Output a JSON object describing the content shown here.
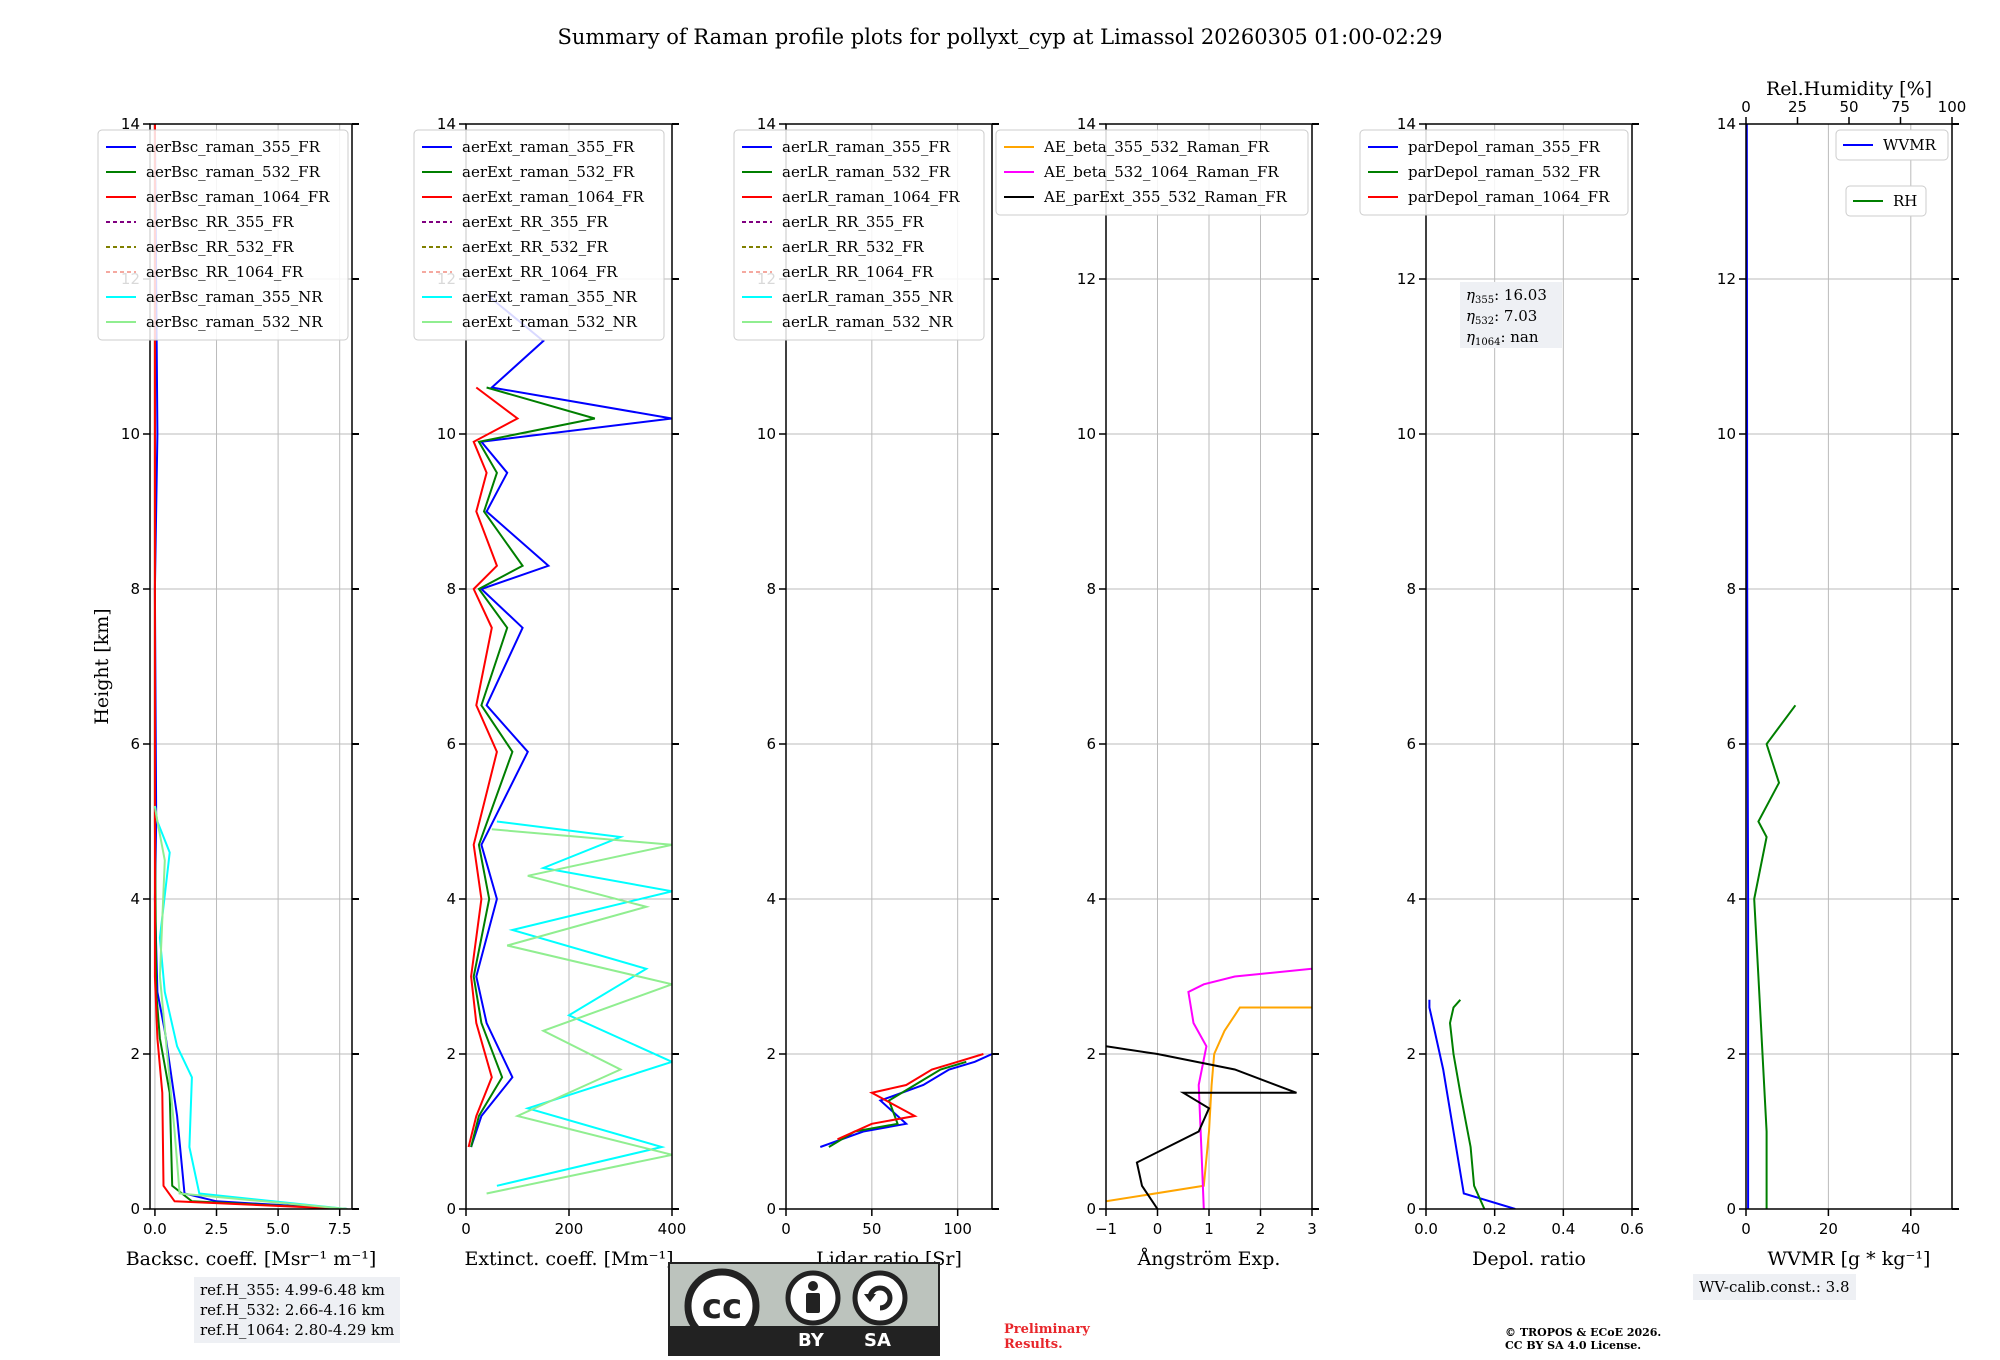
{
  "title": "Summary of Raman profile plots for pollyxt_cyp at Limassol 20260305 01:00-02:29",
  "colors": {
    "blue": "#0000ff",
    "green": "#007f00",
    "red": "#ff0000",
    "purple": "#800080",
    "olive": "#808000",
    "salmon": "#f5a9a0",
    "cyan": "#00ffff",
    "lightgreen": "#90ee90",
    "orange": "#ffa500",
    "magenta": "#ff00ff",
    "black": "#000000"
  },
  "chart_data": [
    {
      "type": "line",
      "id": "backscatter",
      "xlabel": "Backsc. coeff. [Msr⁻¹ m⁻¹]",
      "ylabel": "Height [km]",
      "xlim": [
        -0.2,
        8
      ],
      "ylim": [
        0,
        14
      ],
      "xticks": [
        0.0,
        2.5,
        5.0,
        7.5
      ],
      "xtick_labels": [
        "0.0",
        "2.5",
        "5.0",
        "7.5"
      ],
      "yticks": [
        0,
        2,
        4,
        6,
        8,
        10,
        12,
        14
      ],
      "legend": [
        "aerBsc_raman_355_FR",
        "aerBsc_raman_532_FR",
        "aerBsc_raman_1064_FR",
        "aerBsc_RR_355_FR",
        "aerBsc_RR_532_FR",
        "aerBsc_RR_1064_FR",
        "aerBsc_raman_355_NR",
        "aerBsc_raman_532_NR"
      ],
      "series": [
        {
          "name": "aerBsc_raman_355_FR",
          "color": "#0000ff",
          "x": [
            7.8,
            2.5,
            1.2,
            0.9,
            0.4,
            0.1,
            0.0,
            0.05,
            0.0,
            0.1,
            0.0
          ],
          "y": [
            0.0,
            0.1,
            0.2,
            1.2,
            2.3,
            2.8,
            4.0,
            5.0,
            8.0,
            10.0,
            14.0
          ]
        },
        {
          "name": "aerBsc_raman_532_FR",
          "color": "#007f00",
          "x": [
            7.8,
            1.5,
            0.7,
            0.6,
            0.2,
            0.05,
            0.0,
            0.0
          ],
          "y": [
            0.0,
            0.1,
            0.3,
            1.5,
            2.2,
            2.8,
            5.0,
            14.0
          ]
        },
        {
          "name": "aerBsc_raman_1064_FR",
          "color": "#ff0000",
          "x": [
            7.8,
            0.8,
            0.35,
            0.3,
            0.1,
            0.0,
            0.0
          ],
          "y": [
            0.0,
            0.1,
            0.3,
            1.5,
            2.2,
            3.0,
            14.0
          ]
        },
        {
          "name": "aerBsc_raman_355_NR",
          "color": "#00ffff",
          "x": [
            7.8,
            1.8,
            1.4,
            1.5,
            0.9,
            0.4,
            0.2,
            0.6,
            0.1,
            0.0
          ],
          "y": [
            0.0,
            0.2,
            0.8,
            1.7,
            2.1,
            2.8,
            3.5,
            4.6,
            5.0,
            5.2
          ]
        },
        {
          "name": "aerBsc_raman_532_NR",
          "color": "#90ee90",
          "x": [
            7.8,
            1.0,
            0.8,
            0.5,
            0.2,
            0.4,
            0.1,
            0.0
          ],
          "y": [
            0.0,
            0.2,
            1.0,
            2.0,
            3.0,
            4.5,
            5.0,
            5.2
          ]
        }
      ]
    },
    {
      "type": "line",
      "id": "extinction",
      "xlabel": "Extinct. coeff. [Mm⁻¹]",
      "xlim": [
        0,
        400
      ],
      "ylim": [
        0,
        14
      ],
      "xticks": [
        0,
        200,
        400
      ],
      "xtick_labels": [
        "0",
        "200",
        "400"
      ],
      "yticks": [
        0,
        2,
        4,
        6,
        8,
        10,
        12,
        14
      ],
      "legend": [
        "aerExt_raman_355_FR",
        "aerExt_raman_532_FR",
        "aerExt_raman_1064_FR",
        "aerExt_RR_355_FR",
        "aerExt_RR_532_FR",
        "aerExt_RR_1064_FR",
        "aerExt_raman_355_NR",
        "aerExt_raman_532_NR"
      ],
      "series": [
        {
          "name": "aerExt_raman_355_FR",
          "color": "#0000ff",
          "x": [
            10,
            30,
            90,
            40,
            20,
            60,
            30,
            120,
            40,
            110,
            30,
            160,
            40,
            80,
            30,
            400,
            50,
            150,
            40
          ],
          "y": [
            0.8,
            1.2,
            1.7,
            2.4,
            3.0,
            4.0,
            4.7,
            5.9,
            6.5,
            7.5,
            8.0,
            8.3,
            9.0,
            9.5,
            9.9,
            10.2,
            10.6,
            11.2,
            11.8
          ]
        },
        {
          "name": "aerExt_raman_532_FR",
          "color": "#007f00",
          "x": [
            10,
            25,
            70,
            30,
            15,
            45,
            25,
            90,
            30,
            80,
            25,
            110,
            35,
            60,
            25,
            250,
            40
          ],
          "y": [
            0.8,
            1.2,
            1.7,
            2.4,
            3.0,
            4.0,
            4.7,
            5.9,
            6.5,
            7.5,
            8.0,
            8.3,
            9.0,
            9.5,
            9.9,
            10.2,
            10.6
          ]
        },
        {
          "name": "aerExt_raman_1064_FR",
          "color": "#ff0000",
          "x": [
            5,
            20,
            50,
            20,
            10,
            30,
            15,
            60,
            20,
            50,
            15,
            60,
            20,
            40,
            15,
            100,
            20
          ],
          "y": [
            0.8,
            1.2,
            1.7,
            2.4,
            3.0,
            4.0,
            4.7,
            5.9,
            6.5,
            7.5,
            8.0,
            8.3,
            9.0,
            9.5,
            9.9,
            10.2,
            10.6
          ]
        },
        {
          "name": "aerExt_raman_355_NR",
          "color": "#00ffff",
          "x": [
            60,
            380,
            120,
            400,
            200,
            350,
            90,
            400,
            150,
            300,
            60
          ],
          "y": [
            0.3,
            0.8,
            1.3,
            1.9,
            2.5,
            3.1,
            3.6,
            4.1,
            4.4,
            4.8,
            5.0
          ]
        },
        {
          "name": "aerExt_raman_532_NR",
          "color": "#90ee90",
          "x": [
            40,
            400,
            100,
            300,
            150,
            400,
            80,
            350,
            120,
            400,
            50
          ],
          "y": [
            0.2,
            0.7,
            1.2,
            1.8,
            2.3,
            2.9,
            3.4,
            3.9,
            4.3,
            4.7,
            4.9
          ]
        }
      ]
    },
    {
      "type": "line",
      "id": "lidar_ratio",
      "xlabel": "Lidar ratio [Sr]",
      "xlim": [
        0,
        120
      ],
      "ylim": [
        0,
        14
      ],
      "xticks": [
        0,
        50,
        100
      ],
      "xtick_labels": [
        "0",
        "50",
        "100"
      ],
      "yticks": [
        0,
        2,
        4,
        6,
        8,
        10,
        12,
        14
      ],
      "legend": [
        "aerLR_raman_355_FR",
        "aerLR_raman_532_FR",
        "aerLR_raman_1064_FR",
        "aerLR_RR_355_FR",
        "aerLR_RR_532_FR",
        "aerLR_RR_1064_FR",
        "aerLR_raman_355_NR",
        "aerLR_raman_532_NR"
      ],
      "series": [
        {
          "name": "aerLR_raman_355_FR",
          "color": "#0000ff",
          "x": [
            20,
            45,
            70,
            55,
            80,
            95,
            110,
            120
          ],
          "y": [
            0.8,
            1.0,
            1.1,
            1.4,
            1.6,
            1.8,
            1.9,
            2.0
          ]
        },
        {
          "name": "aerLR_raman_532_FR",
          "color": "#007f00",
          "x": [
            25,
            40,
            65,
            60,
            75,
            90,
            105
          ],
          "y": [
            0.8,
            1.0,
            1.1,
            1.4,
            1.6,
            1.8,
            1.9
          ]
        },
        {
          "name": "aerLR_raman_1064_FR",
          "color": "#ff0000",
          "x": [
            30,
            50,
            75,
            50,
            70,
            85,
            100,
            115
          ],
          "y": [
            0.9,
            1.1,
            1.2,
            1.5,
            1.6,
            1.8,
            1.9,
            2.0
          ]
        }
      ]
    },
    {
      "type": "line",
      "id": "angstrom",
      "xlabel": "Ångström Exp.",
      "xlim": [
        -1,
        3
      ],
      "ylim": [
        0,
        14
      ],
      "xticks": [
        -1,
        0,
        1,
        2,
        3
      ],
      "xtick_labels": [
        "−1",
        "0",
        "1",
        "2",
        "3"
      ],
      "yticks": [
        0,
        2,
        4,
        6,
        8,
        10,
        12,
        14
      ],
      "legend": [
        "AE_beta_355_532_Raman_FR",
        "AE_beta_532_1064_Raman_FR",
        "AE_parExt_355_532_Raman_FR"
      ],
      "series": [
        {
          "name": "AE_beta_355_532_Raman_FR",
          "color": "#ffa500",
          "x": [
            -1.0,
            0.9,
            1.0,
            1.05,
            1.1,
            1.3,
            1.5,
            1.6,
            2.2,
            3.0
          ],
          "y": [
            0.1,
            0.3,
            1.0,
            1.6,
            2.0,
            2.3,
            2.5,
            2.6,
            2.6,
            2.6
          ]
        },
        {
          "name": "AE_beta_532_1064_Raman_FR",
          "color": "#ff00ff",
          "x": [
            0.9,
            0.85,
            0.8,
            0.95,
            0.7,
            0.6,
            0.9,
            1.5,
            3.0
          ],
          "y": [
            0.0,
            0.8,
            1.6,
            2.1,
            2.4,
            2.8,
            2.9,
            3.0,
            3.1
          ]
        },
        {
          "name": "AE_parExt_355_532_Raman_FR",
          "color": "#000000",
          "x": [
            0.0,
            -0.3,
            -0.4,
            0.8,
            1.0,
            0.5,
            2.7,
            1.5,
            0.0,
            -1.0
          ],
          "y": [
            0.0,
            0.3,
            0.6,
            1.0,
            1.3,
            1.5,
            1.5,
            1.8,
            2.0,
            2.1
          ]
        }
      ]
    },
    {
      "type": "line",
      "id": "depol",
      "xlabel": "Depol. ratio",
      "xlim": [
        0,
        0.6
      ],
      "ylim": [
        0,
        14
      ],
      "xticks": [
        0.0,
        0.2,
        0.4,
        0.6
      ],
      "xtick_labels": [
        "0.0",
        "0.2",
        "0.4",
        "0.6"
      ],
      "yticks": [
        0,
        2,
        4,
        6,
        8,
        10,
        12,
        14
      ],
      "legend": [
        "parDepol_raman_355_FR",
        "parDepol_raman_532_FR",
        "parDepol_raman_1064_FR"
      ],
      "annotation": {
        "eta355": "16.03",
        "eta532": "7.03",
        "eta1064": "nan"
      },
      "series": [
        {
          "name": "parDepol_raman_355_FR",
          "color": "#0000ff",
          "x": [
            0.26,
            0.11,
            0.08,
            0.05,
            0.02,
            0.01,
            0.01
          ],
          "y": [
            0.0,
            0.2,
            1.0,
            1.8,
            2.4,
            2.6,
            2.7
          ]
        },
        {
          "name": "parDepol_raman_532_FR",
          "color": "#007f00",
          "x": [
            0.17,
            0.14,
            0.13,
            0.1,
            0.08,
            0.07,
            0.08,
            0.1
          ],
          "y": [
            0.0,
            0.3,
            0.8,
            1.5,
            2.0,
            2.4,
            2.6,
            2.7
          ]
        }
      ]
    },
    {
      "type": "line",
      "id": "wvmr",
      "xlabel": "WVMR [g * kg⁻¹]",
      "top_xlabel": "Rel.Humidity [%]",
      "xlim": [
        0,
        50
      ],
      "ylim": [
        0,
        14
      ],
      "xticks": [
        0,
        20,
        40
      ],
      "xtick_labels": [
        "0",
        "20",
        "40"
      ],
      "top_xticks": [
        0,
        25,
        50,
        75,
        100
      ],
      "top_xtick_labels": [
        "0",
        "25",
        "50",
        "75",
        "100"
      ],
      "yticks": [
        0,
        2,
        4,
        6,
        8,
        10,
        12,
        14
      ],
      "legend": [
        "WVMR",
        "RH"
      ],
      "series": [
        {
          "name": "WVMR",
          "color": "#0000ff",
          "x": [
            0.5,
            0.5,
            0.3,
            0.2
          ],
          "y": [
            0.0,
            4.0,
            8.0,
            14.0
          ]
        },
        {
          "name": "RH",
          "color": "#007f00",
          "x": [
            5,
            5,
            4,
            3,
            2,
            5,
            3,
            8,
            5,
            12
          ],
          "y": [
            0.0,
            1.0,
            2.0,
            3.0,
            4.0,
            4.8,
            5.0,
            5.5,
            6.0,
            6.5
          ]
        }
      ]
    }
  ],
  "text": {
    "backscatter_xlabel": "Backsc. coeff. [Msr⁻¹ m⁻¹]",
    "ref_h_355": "ref.H_355: 4.99-6.48 km",
    "ref_h_532": "ref.H_532: 2.66-4.16 km",
    "ref_h_1064": "ref.H_1064: 2.80-4.29 km",
    "wv_calib": "WV-calib.const.: 3.8",
    "preliminary_1": "Preliminary",
    "preliminary_2": "Results.",
    "copyright_1": "© TROPOS & ECoE 2026.",
    "copyright_2": "CC BY SA 4.0 License.",
    "cc_badge": "cc",
    "cc_by": "BY",
    "cc_sa": "SA"
  }
}
